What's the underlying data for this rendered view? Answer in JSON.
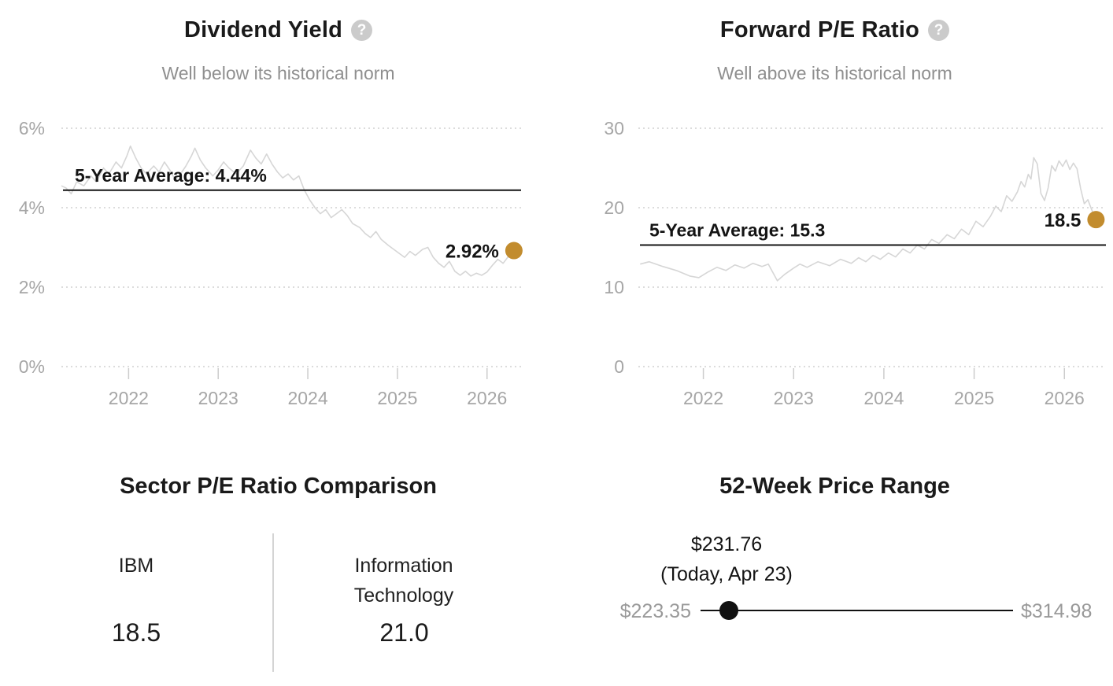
{
  "icons": {
    "help_glyph": "?"
  },
  "colors": {
    "gold_marker": "#c28c2e",
    "average_line": "#141414",
    "series_line": "#d6d6d6",
    "axis_text": "#a6a6a6",
    "subtitle_text": "#8f8f8f",
    "range_label_gray": "#999999"
  },
  "chart_data": [
    {
      "type": "line",
      "id": "dividend_yield",
      "title": "Dividend Yield",
      "subtitle": "Well below its historical norm",
      "xlim": [
        2021.25,
        2026.38
      ],
      "ylim": [
        0,
        6
      ],
      "yticks": [
        {
          "value": 6,
          "label": "6%"
        },
        {
          "value": 4,
          "label": "4%"
        },
        {
          "value": 2,
          "label": "2%"
        },
        {
          "value": 0,
          "label": "0%"
        }
      ],
      "xticks": [
        {
          "value": 2022,
          "label": "2022"
        },
        {
          "value": 2023,
          "label": "2023"
        },
        {
          "value": 2024,
          "label": "2024"
        },
        {
          "value": 2025,
          "label": "2025"
        },
        {
          "value": 2026,
          "label": "2026"
        }
      ],
      "grid": "dotted",
      "legend": "none",
      "average": {
        "label": "5-Year Average: 4.44%",
        "value": 4.44
      },
      "current": {
        "label": "2.92%",
        "value": 2.92
      },
      "series": [
        [
          2021.25,
          4.55
        ],
        [
          2021.3,
          4.5
        ],
        [
          2021.36,
          4.35
        ],
        [
          2021.42,
          4.65
        ],
        [
          2021.5,
          4.55
        ],
        [
          2021.58,
          4.8
        ],
        [
          2021.64,
          4.65
        ],
        [
          2021.72,
          5.0
        ],
        [
          2021.78,
          4.85
        ],
        [
          2021.86,
          5.15
        ],
        [
          2021.92,
          5.0
        ],
        [
          2021.98,
          5.3
        ],
        [
          2022.02,
          5.55
        ],
        [
          2022.08,
          5.25
        ],
        [
          2022.14,
          5.0
        ],
        [
          2022.2,
          4.85
        ],
        [
          2022.28,
          5.05
        ],
        [
          2022.34,
          4.9
        ],
        [
          2022.4,
          5.15
        ],
        [
          2022.46,
          4.95
        ],
        [
          2022.52,
          4.7
        ],
        [
          2022.58,
          4.85
        ],
        [
          2022.64,
          5.05
        ],
        [
          2022.7,
          5.3
        ],
        [
          2022.74,
          5.5
        ],
        [
          2022.8,
          5.2
        ],
        [
          2022.86,
          5.0
        ],
        [
          2022.94,
          4.8
        ],
        [
          2023.0,
          4.95
        ],
        [
          2023.06,
          5.15
        ],
        [
          2023.12,
          5.0
        ],
        [
          2023.2,
          4.85
        ],
        [
          2023.28,
          5.05
        ],
        [
          2023.36,
          5.45
        ],
        [
          2023.42,
          5.25
        ],
        [
          2023.48,
          5.1
        ],
        [
          2023.54,
          5.35
        ],
        [
          2023.6,
          5.1
        ],
        [
          2023.66,
          4.9
        ],
        [
          2023.72,
          4.75
        ],
        [
          2023.78,
          4.85
        ],
        [
          2023.84,
          4.7
        ],
        [
          2023.9,
          4.8
        ],
        [
          2023.96,
          4.45
        ],
        [
          2024.02,
          4.2
        ],
        [
          2024.08,
          4.0
        ],
        [
          2024.14,
          3.85
        ],
        [
          2024.2,
          3.95
        ],
        [
          2024.26,
          3.75
        ],
        [
          2024.32,
          3.85
        ],
        [
          2024.38,
          3.95
        ],
        [
          2024.44,
          3.8
        ],
        [
          2024.5,
          3.6
        ],
        [
          2024.58,
          3.5
        ],
        [
          2024.64,
          3.35
        ],
        [
          2024.7,
          3.25
        ],
        [
          2024.76,
          3.4
        ],
        [
          2024.82,
          3.2
        ],
        [
          2024.9,
          3.05
        ],
        [
          2024.96,
          2.95
        ],
        [
          2025.02,
          2.85
        ],
        [
          2025.08,
          2.75
        ],
        [
          2025.14,
          2.9
        ],
        [
          2025.2,
          2.8
        ],
        [
          2025.28,
          2.95
        ],
        [
          2025.34,
          3.0
        ],
        [
          2025.4,
          2.75
        ],
        [
          2025.46,
          2.6
        ],
        [
          2025.52,
          2.5
        ],
        [
          2025.58,
          2.65
        ],
        [
          2025.64,
          2.4
        ],
        [
          2025.7,
          2.3
        ],
        [
          2025.76,
          2.4
        ],
        [
          2025.82,
          2.28
        ],
        [
          2025.88,
          2.35
        ],
        [
          2025.94,
          2.3
        ],
        [
          2026.0,
          2.38
        ],
        [
          2026.06,
          2.55
        ],
        [
          2026.12,
          2.7
        ],
        [
          2026.18,
          2.6
        ],
        [
          2026.24,
          2.78
        ],
        [
          2026.3,
          2.92
        ]
      ]
    },
    {
      "type": "line",
      "id": "forward_pe_ratio",
      "title": "Forward P/E Ratio",
      "subtitle": "Well above its historical norm",
      "xlim": [
        2021.28,
        2026.46
      ],
      "ylim": [
        0,
        30
      ],
      "yticks": [
        {
          "value": 30,
          "label": "30"
        },
        {
          "value": 20,
          "label": "20"
        },
        {
          "value": 10,
          "label": "10"
        },
        {
          "value": 0,
          "label": "0"
        }
      ],
      "xticks": [
        {
          "value": 2022,
          "label": "2022"
        },
        {
          "value": 2023,
          "label": "2023"
        },
        {
          "value": 2024,
          "label": "2024"
        },
        {
          "value": 2025,
          "label": "2025"
        },
        {
          "value": 2026,
          "label": "2026"
        }
      ],
      "grid": "dotted",
      "legend": "none",
      "average": {
        "label": "5-Year Average: 15.3",
        "value": 15.3
      },
      "current": {
        "label": "18.5",
        "value": 18.5
      },
      "series": [
        [
          2021.3,
          12.9
        ],
        [
          2021.4,
          13.2
        ],
        [
          2021.55,
          12.6
        ],
        [
          2021.7,
          12.1
        ],
        [
          2021.85,
          11.4
        ],
        [
          2021.95,
          11.2
        ],
        [
          2022.05,
          11.9
        ],
        [
          2022.15,
          12.5
        ],
        [
          2022.25,
          12.1
        ],
        [
          2022.35,
          12.8
        ],
        [
          2022.45,
          12.4
        ],
        [
          2022.55,
          13.0
        ],
        [
          2022.65,
          12.6
        ],
        [
          2022.72,
          12.9
        ],
        [
          2022.82,
          10.8
        ],
        [
          2022.9,
          11.6
        ],
        [
          2023.0,
          12.4
        ],
        [
          2023.07,
          12.9
        ],
        [
          2023.15,
          12.5
        ],
        [
          2023.27,
          13.2
        ],
        [
          2023.4,
          12.7
        ],
        [
          2023.52,
          13.5
        ],
        [
          2023.64,
          13.0
        ],
        [
          2023.72,
          13.7
        ],
        [
          2023.8,
          13.2
        ],
        [
          2023.88,
          14.0
        ],
        [
          2023.96,
          13.5
        ],
        [
          2024.05,
          14.3
        ],
        [
          2024.13,
          13.8
        ],
        [
          2024.21,
          14.8
        ],
        [
          2024.29,
          14.3
        ],
        [
          2024.37,
          15.3
        ],
        [
          2024.45,
          14.8
        ],
        [
          2024.53,
          16.0
        ],
        [
          2024.61,
          15.5
        ],
        [
          2024.7,
          16.6
        ],
        [
          2024.78,
          16.1
        ],
        [
          2024.86,
          17.3
        ],
        [
          2024.94,
          16.6
        ],
        [
          2025.02,
          18.3
        ],
        [
          2025.1,
          17.6
        ],
        [
          2025.18,
          18.9
        ],
        [
          2025.24,
          20.2
        ],
        [
          2025.3,
          19.5
        ],
        [
          2025.36,
          21.5
        ],
        [
          2025.42,
          20.8
        ],
        [
          2025.48,
          22.0
        ],
        [
          2025.52,
          23.3
        ],
        [
          2025.56,
          22.6
        ],
        [
          2025.6,
          24.2
        ],
        [
          2025.63,
          23.6
        ],
        [
          2025.66,
          26.3
        ],
        [
          2025.7,
          25.5
        ],
        [
          2025.74,
          21.8
        ],
        [
          2025.78,
          20.9
        ],
        [
          2025.82,
          22.5
        ],
        [
          2025.86,
          25.3
        ],
        [
          2025.9,
          24.6
        ],
        [
          2025.94,
          25.9
        ],
        [
          2025.98,
          25.2
        ],
        [
          2026.02,
          26.0
        ],
        [
          2026.06,
          24.8
        ],
        [
          2026.1,
          25.6
        ],
        [
          2026.14,
          24.9
        ],
        [
          2026.18,
          22.4
        ],
        [
          2026.22,
          20.5
        ],
        [
          2026.26,
          21.0
        ],
        [
          2026.3,
          19.8
        ],
        [
          2026.35,
          18.5
        ]
      ]
    },
    {
      "type": "table",
      "id": "sector_pe_comparison",
      "title": "Sector P/E Ratio Comparison",
      "cols": [
        {
          "label": "IBM",
          "value": "18.5"
        },
        {
          "label": "Information Technology",
          "value": "21.0"
        }
      ]
    },
    {
      "type": "range",
      "id": "week52_price_range",
      "title": "52-Week Price Range",
      "min": 223.35,
      "max": 314.98,
      "current": 231.76,
      "min_label": "$223.35",
      "max_label": "$314.98",
      "current_label": "$231.76",
      "caption": "(Today, Apr 23)"
    }
  ]
}
